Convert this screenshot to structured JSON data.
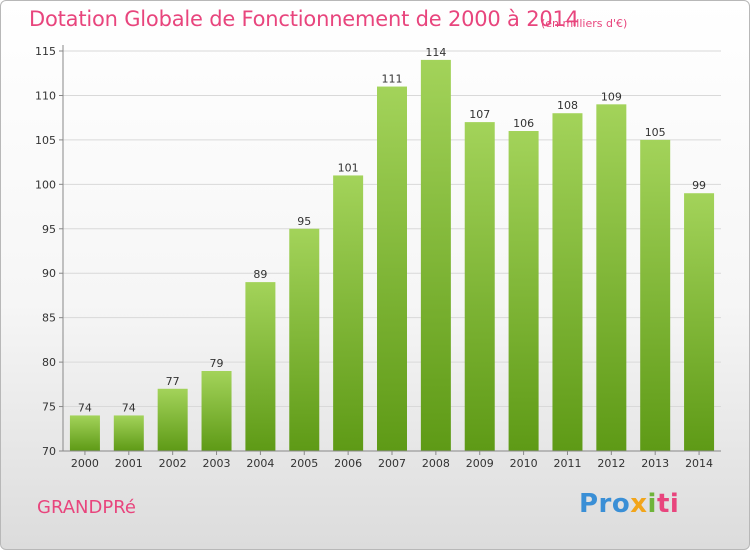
{
  "title": "Dotation Globale de Fonctionnement de 2000 à 2014",
  "unit_note": "(en milliers d'€)",
  "commune": "GRANDPRé",
  "logo": {
    "part1": "Pro",
    "part2": "x",
    "part3": "i",
    "part4": "ti"
  },
  "colors": {
    "title": "#e8457d",
    "bar_top": "#a3d35a",
    "bar_bottom": "#5e9a16",
    "grid": "#d9d9d9",
    "axis": "#888888"
  },
  "chart_data": {
    "type": "bar",
    "categories": [
      "2000",
      "2001",
      "2002",
      "2003",
      "2004",
      "2005",
      "2006",
      "2007",
      "2008",
      "2009",
      "2010",
      "2011",
      "2012",
      "2013",
      "2014"
    ],
    "values": [
      74,
      74,
      77,
      79,
      89,
      95,
      101,
      111,
      114,
      107,
      106,
      108,
      109,
      105,
      99
    ],
    "title": "Dotation Globale de Fonctionnement de 2000 à 2014",
    "xlabel": "",
    "ylabel": "",
    "ylim": [
      70,
      115
    ],
    "yticks": [
      70,
      75,
      80,
      85,
      90,
      95,
      100,
      105,
      110,
      115
    ],
    "grid": true,
    "legend": "none"
  }
}
